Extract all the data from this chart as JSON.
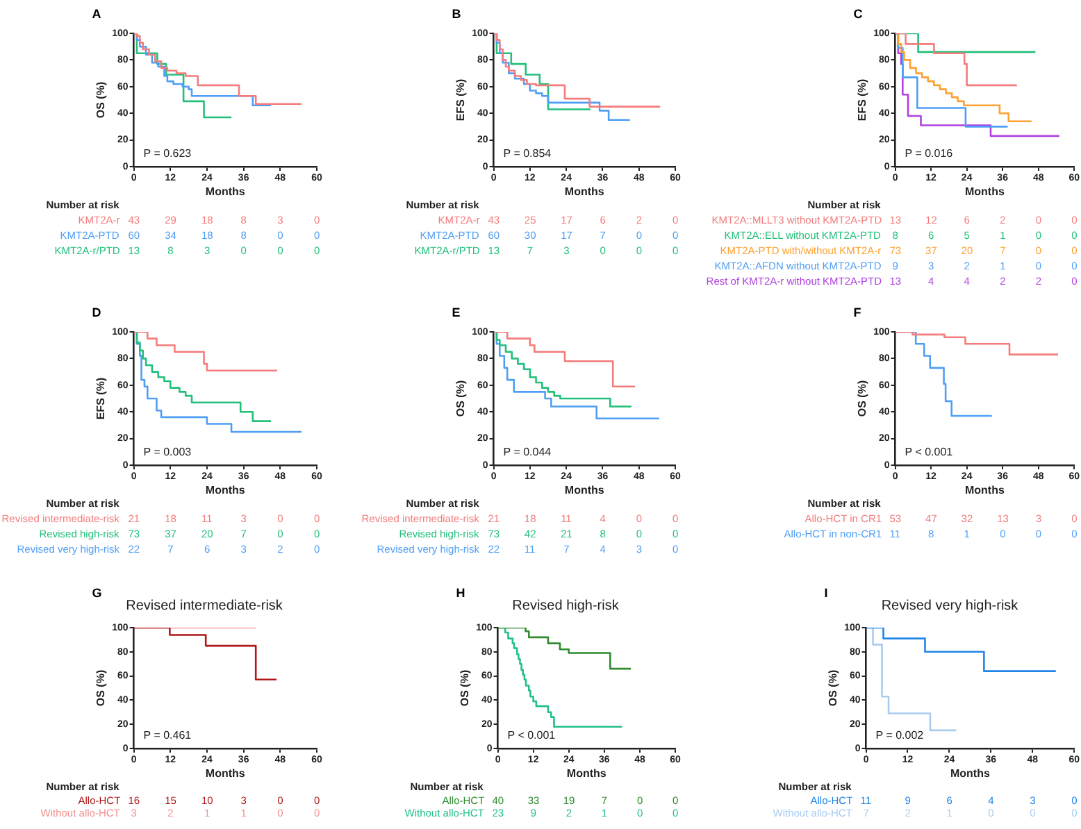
{
  "chart_data": [
    {
      "type": "step",
      "xlabel": "Months",
      "ylabel": "OS (%)",
      "xlim": [
        0,
        60
      ],
      "xticks": [
        0,
        12,
        24,
        36,
        48,
        60
      ],
      "ylim": [
        0,
        100
      ],
      "yticks": [
        0,
        20,
        40,
        60,
        80,
        100
      ],
      "grid": false,
      "legend": false,
      "marker": "none",
      "annotations": [
        "A",
        "P = 0.623",
        "Number at risk",
        "43 29 18 8 3 0",
        "60 34 18 8 0 0",
        "13 8 3 0 0 0"
      ],
      "series": [
        {
          "name": "KMT2A-r",
          "color": "#f47c7c",
          "x": [
            0,
            1,
            2,
            3,
            5,
            7,
            9,
            11,
            14,
            17,
            21,
            34.5,
            40,
            55
          ],
          "values": [
            100,
            98,
            93,
            88,
            84,
            79,
            74,
            72,
            70,
            68,
            61,
            53,
            47,
            47
          ]
        },
        {
          "name": "KMT2A-PTD",
          "color": "#4f9ef5",
          "x": [
            0,
            1,
            2,
            4,
            6,
            8,
            10,
            11,
            13,
            16,
            18,
            19,
            39,
            45
          ],
          "values": [
            100,
            95,
            90,
            84,
            78,
            75,
            68,
            64,
            62,
            60,
            58,
            53,
            46,
            46
          ]
        },
        {
          "name": "KMT2A-r/PTD",
          "color": "#22c07a",
          "x": [
            0,
            1,
            7.7,
            10.6,
            16.3,
            23,
            32
          ],
          "values": [
            100,
            85,
            77,
            69,
            49,
            37,
            37
          ]
        }
      ]
    },
    {
      "type": "step",
      "xlabel": "Months",
      "ylabel": "EFS (%)",
      "xlim": [
        0,
        60
      ],
      "xticks": [
        0,
        12,
        24,
        36,
        48,
        60
      ],
      "ylim": [
        0,
        100
      ],
      "yticks": [
        0,
        20,
        40,
        60,
        80,
        100
      ],
      "grid": false,
      "legend": false,
      "marker": "none",
      "annotations": [
        "B",
        "P = 0.854",
        "Number at risk",
        "43 25 17 6 2 0",
        "60 30 17 7 0 0",
        "13 7 3 0 0 0"
      ],
      "series": [
        {
          "name": "KMT2A-r",
          "color": "#f47c7c",
          "x": [
            0,
            1,
            2,
            3,
            4,
            5,
            7,
            9,
            11,
            14,
            23.5,
            31.7,
            55
          ],
          "values": [
            100,
            95,
            88,
            80,
            75,
            72,
            68,
            65,
            62,
            61,
            51,
            45,
            45
          ]
        },
        {
          "name": "KMT2A-PTD",
          "color": "#4f9ef5",
          "x": [
            0,
            1,
            2,
            3,
            5,
            7,
            10,
            12,
            14,
            16,
            18,
            35,
            38,
            45
          ],
          "values": [
            100,
            93,
            85,
            78,
            70,
            66,
            62,
            57,
            55,
            53,
            48,
            42,
            35,
            35
          ]
        },
        {
          "name": "KMT2A-r/PTD",
          "color": "#22c07a",
          "x": [
            0,
            1,
            5.8,
            10.6,
            15.2,
            18,
            32
          ],
          "values": [
            100,
            85,
            77,
            69,
            62,
            43,
            43
          ]
        }
      ]
    },
    {
      "type": "step",
      "xlabel": "Months",
      "ylabel": "EFS (%)",
      "xlim": [
        0,
        60
      ],
      "xticks": [
        0,
        12,
        24,
        36,
        48,
        60
      ],
      "ylim": [
        0,
        100
      ],
      "yticks": [
        0,
        20,
        40,
        60,
        80,
        100
      ],
      "grid": false,
      "legend": false,
      "marker": "none",
      "annotations": [
        "C",
        "P = 0.016",
        "Number at risk",
        "13 12 6 2 0 0",
        "8 6 5 1 0 0",
        "73 37 20 7 0 0",
        "9 3 2 1 0 0",
        "13 4 4 2 2 0"
      ],
      "series": [
        {
          "name": "KMT2A::MLLT3 without KMT2A-PTD",
          "color": "#f47c7c",
          "x": [
            0,
            3.5,
            13,
            23.2,
            24,
            40.8
          ],
          "values": [
            100,
            92,
            85,
            77,
            61,
            61
          ]
        },
        {
          "name": "KMT2A::ELL without KMT2A-PTD",
          "color": "#22c07a",
          "x": [
            0,
            7.7,
            47
          ],
          "values": [
            100,
            86,
            86
          ]
        },
        {
          "name": "KMT2A-PTD with/without KMT2A-r",
          "color": "#ffa030",
          "x": [
            0,
            1,
            2,
            3,
            5,
            7,
            9,
            11,
            13,
            15,
            17,
            19,
            21,
            23,
            35,
            38,
            45.7
          ],
          "values": [
            100,
            92,
            86,
            80,
            74,
            70,
            67,
            64,
            61,
            58,
            55,
            52,
            49,
            46,
            40,
            34,
            34
          ]
        },
        {
          "name": "KMT2A::AFDN without KMT2A-PTD",
          "color": "#4f9ef5",
          "x": [
            0,
            1,
            2.5,
            7.4,
            23.6,
            37.7
          ],
          "values": [
            100,
            89,
            67,
            44,
            30,
            30
          ]
        },
        {
          "name": "Rest of KMT2A-r without KMT2A-PTD",
          "color": "#b040e0",
          "x": [
            0,
            1,
            2,
            2.5,
            4.3,
            8.6,
            32,
            55
          ],
          "values": [
            100,
            85,
            77,
            54,
            38,
            31,
            23,
            23
          ]
        }
      ]
    },
    {
      "type": "step",
      "xlabel": "Months",
      "ylabel": "EFS (%)",
      "xlim": [
        0,
        60
      ],
      "xticks": [
        0,
        12,
        24,
        36,
        48,
        60
      ],
      "ylim": [
        0,
        100
      ],
      "yticks": [
        0,
        20,
        40,
        60,
        80,
        100
      ],
      "grid": false,
      "legend": false,
      "marker": "none",
      "annotations": [
        "D",
        "P = 0.003",
        "Number at risk",
        "21 18 11 3 0 0",
        "73 37 20 7 0 0",
        "22 7 6 3 2 0"
      ],
      "series": [
        {
          "name": "Revised intermediate-risk",
          "color": "#f47c7c",
          "x": [
            0,
            4.5,
            7.5,
            13.4,
            23,
            24,
            47
          ],
          "values": [
            100,
            95,
            90,
            85,
            76,
            71,
            71
          ]
        },
        {
          "name": "Revised high-risk",
          "color": "#22c07a",
          "x": [
            0,
            1,
            2,
            3,
            4,
            6,
            8,
            10,
            12,
            15,
            17,
            19,
            35,
            39,
            45
          ],
          "values": [
            100,
            92,
            86,
            80,
            75,
            70,
            66,
            63,
            58,
            55,
            52,
            47,
            40,
            33,
            33
          ]
        },
        {
          "name": "Revised very high-risk",
          "color": "#4f9ef5",
          "x": [
            0,
            1,
            2,
            2.5,
            3.5,
            4.5,
            7.5,
            9,
            24,
            32,
            55
          ],
          "values": [
            100,
            91,
            82,
            64,
            59,
            50,
            41,
            36,
            31,
            25,
            25
          ]
        }
      ]
    },
    {
      "type": "step",
      "xlabel": "Months",
      "ylabel": "OS (%)",
      "xlim": [
        0,
        60
      ],
      "xticks": [
        0,
        12,
        24,
        36,
        48,
        60
      ],
      "ylim": [
        0,
        100
      ],
      "yticks": [
        0,
        20,
        40,
        60,
        80,
        100
      ],
      "grid": false,
      "legend": false,
      "marker": "none",
      "annotations": [
        "E",
        "P = 0.044",
        "Number at risk",
        "21 18 11 4 0 0",
        "73 42 21 8 0 0",
        "22 11 7 4 3 0"
      ],
      "series": [
        {
          "name": "Revised intermediate-risk",
          "color": "#f47c7c",
          "x": [
            0,
            4.5,
            12,
            13.5,
            23.5,
            39.4,
            46.7
          ],
          "values": [
            100,
            95,
            90,
            85,
            78,
            59,
            59
          ]
        },
        {
          "name": "Revised high-risk",
          "color": "#22c07a",
          "x": [
            0,
            1,
            2,
            4,
            6,
            8,
            10,
            12,
            14,
            16,
            18,
            20,
            22,
            38.5,
            45.5
          ],
          "values": [
            100,
            94,
            90,
            85,
            80,
            76,
            72,
            66,
            62,
            58,
            55,
            52,
            50,
            44,
            44
          ]
        },
        {
          "name": "Revised very high-risk",
          "color": "#4f9ef5",
          "x": [
            0,
            1,
            2,
            3.5,
            4.5,
            6.7,
            17,
            19,
            34,
            54.7
          ],
          "values": [
            100,
            91,
            82,
            73,
            64,
            55,
            50,
            44,
            35,
            35
          ]
        }
      ]
    },
    {
      "type": "step",
      "xlabel": "Months",
      "ylabel": "OS (%)",
      "xlim": [
        0,
        60
      ],
      "xticks": [
        0,
        12,
        24,
        36,
        48,
        60
      ],
      "ylim": [
        0,
        100
      ],
      "yticks": [
        0,
        20,
        40,
        60,
        80,
        100
      ],
      "grid": false,
      "legend": false,
      "marker": "none",
      "annotations": [
        "F",
        "P < 0.001",
        "Number at risk",
        "53 47 32 13 3 0",
        "11 8 1 0 0 0"
      ],
      "series": [
        {
          "name": "Allo-HCT in CR1",
          "color": "#f47c7c",
          "x": [
            0,
            5.8,
            16.5,
            23.5,
            38.3,
            54.6
          ],
          "values": [
            100,
            98,
            96,
            91,
            83,
            83
          ]
        },
        {
          "name": "Allo-HCT in non-CR1",
          "color": "#4f9ef5",
          "x": [
            0,
            6.9,
            9.7,
            11.7,
            16.3,
            16.9,
            18.9,
            32.4
          ],
          "values": [
            100,
            91,
            82,
            73,
            61,
            48,
            37,
            37
          ]
        }
      ]
    },
    {
      "type": "step",
      "title": "Revised intermediate-risk",
      "xlabel": "Months",
      "ylabel": "OS (%)",
      "xlim": [
        0,
        60
      ],
      "xticks": [
        0,
        12,
        24,
        36,
        48,
        60
      ],
      "ylim": [
        0,
        100
      ],
      "yticks": [
        0,
        20,
        40,
        60,
        80,
        100
      ],
      "grid": false,
      "legend": false,
      "marker": "none",
      "annotations": [
        "G",
        "P = 0.461",
        "Number at risk",
        "16 15 10 3 0 0",
        "3 2 1 1 0 0"
      ],
      "series": [
        {
          "name": "Allo-HCT",
          "color": "#b01818",
          "x": [
            0,
            11.8,
            23.6,
            40,
            46.8
          ],
          "values": [
            100,
            94,
            85,
            57,
            57
          ]
        },
        {
          "name": "Without allo-HCT",
          "color": "#f49090",
          "x": [
            0,
            40
          ],
          "values": [
            100,
            100
          ]
        }
      ]
    },
    {
      "type": "step",
      "title": "Revised high-risk",
      "xlabel": "Months",
      "ylabel": "OS (%)",
      "xlim": [
        0,
        60
      ],
      "xticks": [
        0,
        12,
        24,
        36,
        48,
        60
      ],
      "ylim": [
        0,
        100
      ],
      "yticks": [
        0,
        20,
        40,
        60,
        80,
        100
      ],
      "grid": false,
      "legend": false,
      "marker": "none",
      "annotations": [
        "H",
        "P < 0.001",
        "Number at risk",
        "40 33 19 7 0 0",
        "23 9 2 1 0 0"
      ],
      "series": [
        {
          "name": "Allo-HCT",
          "color": "#2e8b2e",
          "x": [
            0,
            9.4,
            10.5,
            17,
            21,
            24,
            38,
            45
          ],
          "values": [
            100,
            97,
            92,
            87,
            82,
            79,
            66,
            66
          ]
        },
        {
          "name": "Without allo-HCT",
          "color": "#22c08a",
          "x": [
            0,
            2.5,
            3.5,
            5,
            5.5,
            6.5,
            7,
            7.5,
            8,
            8.5,
            9,
            9.5,
            10.5,
            11,
            12,
            13,
            17,
            18,
            19,
            42
          ],
          "values": [
            100,
            96,
            91,
            87,
            83,
            78,
            74,
            70,
            65,
            61,
            57,
            52,
            48,
            43,
            39,
            35,
            30,
            26,
            18,
            18
          ]
        }
      ]
    },
    {
      "type": "step",
      "title": "Revised very high-risk",
      "xlabel": "Months",
      "ylabel": "OS (%)",
      "xlim": [
        0,
        60
      ],
      "xticks": [
        0,
        12,
        24,
        36,
        48,
        60
      ],
      "ylim": [
        0,
        100
      ],
      "yticks": [
        0,
        20,
        40,
        60,
        80,
        100
      ],
      "grid": false,
      "legend": false,
      "marker": "none",
      "annotations": [
        "I",
        "P = 0.002",
        "Number at risk",
        "11 9 6 4 3 0",
        "7 2 1 0 0 0"
      ],
      "series": [
        {
          "name": "Allo-HCT",
          "color": "#2185e8",
          "x": [
            0,
            5,
            17,
            34,
            54.7
          ],
          "values": [
            100,
            91,
            80,
            64,
            64
          ]
        },
        {
          "name": "Without allo-HCT",
          "color": "#a8ccf0",
          "x": [
            0,
            2,
            4.6,
            6.5,
            18.5,
            26
          ],
          "values": [
            100,
            86,
            43,
            29,
            15,
            15
          ]
        }
      ]
    }
  ]
}
